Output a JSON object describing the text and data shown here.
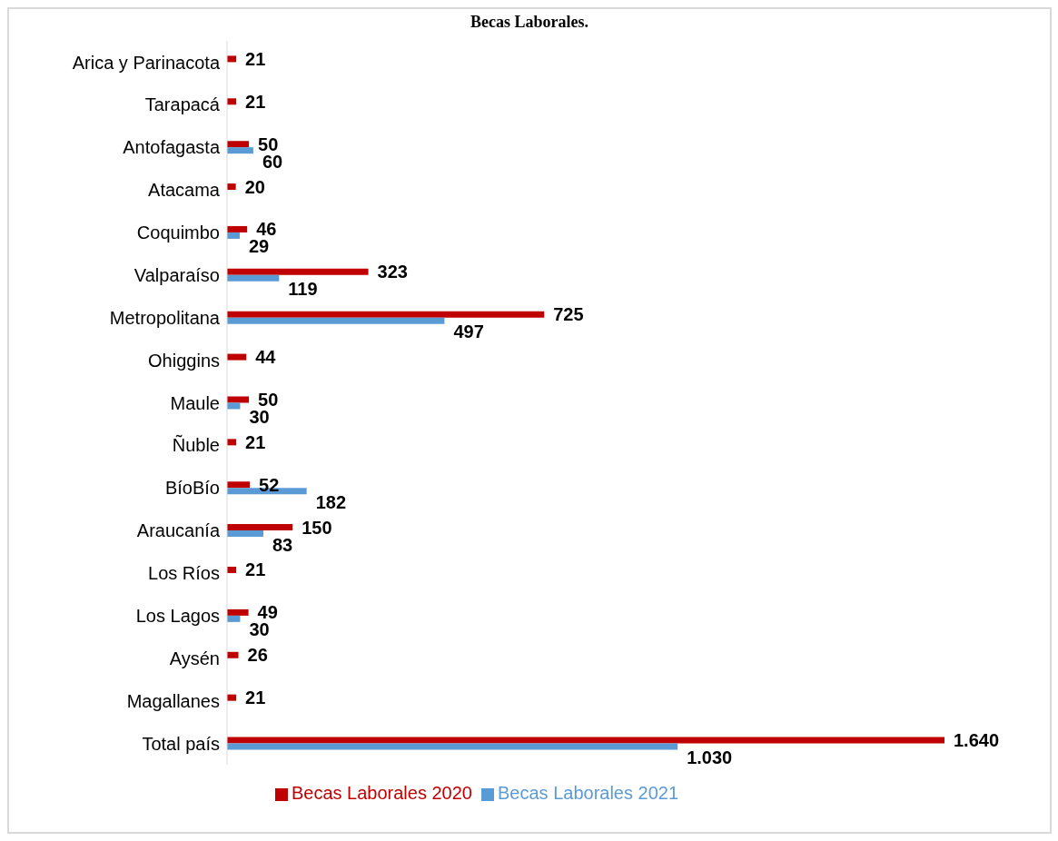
{
  "chart_data": {
    "type": "bar",
    "orientation": "horizontal",
    "title": "Becas Laborales.",
    "categories": [
      "Arica y Parinacota",
      "Tarapacá",
      "Antofagasta",
      "Atacama",
      "Coquimbo",
      "Valparaíso",
      "Metropolitana",
      "Ohiggins",
      "Maule",
      "Ñuble",
      "BíoBío",
      "Araucanía",
      "Los Ríos",
      "Los Lagos",
      "Aysén",
      "Magallanes",
      "Total país"
    ],
    "series": [
      {
        "name": "Becas Laborales 2020",
        "color": "#c00000",
        "values": [
          21,
          21,
          50,
          20,
          46,
          323,
          725,
          44,
          50,
          21,
          52,
          150,
          21,
          49,
          26,
          21,
          1640
        ],
        "value_labels": [
          "21",
          "21",
          "50",
          "20",
          "46",
          "323",
          "725",
          "44",
          "50",
          "21",
          "52",
          "150",
          "21",
          "49",
          "26",
          "21",
          "1.640"
        ]
      },
      {
        "name": "Becas Laborales 2021",
        "color": "#5b9bd5",
        "values": [
          null,
          null,
          60,
          null,
          29,
          119,
          497,
          null,
          30,
          null,
          182,
          83,
          null,
          30,
          null,
          null,
          1030
        ],
        "value_labels": [
          null,
          null,
          "60",
          null,
          "29",
          "119",
          "497",
          null,
          "30",
          null,
          "182",
          "83",
          null,
          "30",
          null,
          null,
          "1.030"
        ]
      }
    ],
    "legend": "bottom",
    "grid": false
  }
}
